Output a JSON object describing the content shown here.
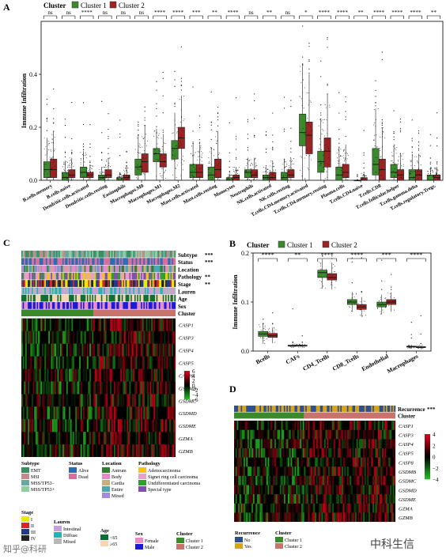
{
  "panel_labels": {
    "a": "A",
    "b": "B",
    "c": "C",
    "d": "D"
  },
  "colors": {
    "cluster1": "#3a8a2c",
    "cluster2": "#9b2324",
    "heat_high": "#e0001b",
    "heat_mid": "#000000",
    "heat_low": "#22bb22"
  },
  "chart_data": [
    {
      "type": "box",
      "panel": "A",
      "legend_title": "Cluster",
      "legend": [
        "Cluster 1",
        "Cluster 2"
      ],
      "ylabel": "Immune Infiltration",
      "ylim": [
        0,
        0.6
      ],
      "yticks": [
        "0.0",
        "0.2",
        "0.4"
      ],
      "categories": [
        "B.cells.memory",
        "B.cells.naive",
        "Dendritic.cells.activated",
        "Dendritic.cells.resting",
        "Eosinophils",
        "Macrophages.M0",
        "Macrophages.M1",
        "Macrophages.M2",
        "Mast.cells.activated",
        "Mast.cells.resting",
        "Monocytes",
        "Neutrophils",
        "NK.cells.activated",
        "NK.cells.resting",
        "T.cells.CD4.memory.activated",
        "T.cells.CD4.memory.resting",
        "Plasma.cells",
        "T.cells.CD4.naive",
        "T.cells.CD8",
        "T.cells.follicular.helper",
        "T.cells.gamma.delta",
        "T.cells.regulatory.Tregs."
      ],
      "significance": [
        "ns",
        "ns",
        "****",
        "ns",
        "ns",
        "ns",
        "****",
        "****",
        "***",
        "**",
        "****",
        "ns",
        "**",
        "ns",
        "*",
        "****",
        "****",
        "**",
        "****",
        "****",
        "****",
        "**"
      ],
      "series": [
        {
          "name": "Cluster 1",
          "q1": [
            0.01,
            0.0,
            0.01,
            0.0,
            0.0,
            0.02,
            0.07,
            0.08,
            0.01,
            0.0,
            0.0,
            0.01,
            0.0,
            0.0,
            0.13,
            0.03,
            0.0,
            0.0,
            0.02,
            0.01,
            0.0,
            0.0
          ],
          "median": [
            0.04,
            0.01,
            0.03,
            0.01,
            0.0,
            0.05,
            0.1,
            0.12,
            0.03,
            0.02,
            0.0,
            0.03,
            0.01,
            0.01,
            0.18,
            0.07,
            0.02,
            0.0,
            0.06,
            0.03,
            0.01,
            0.0
          ],
          "q3": [
            0.07,
            0.03,
            0.05,
            0.02,
            0.01,
            0.08,
            0.12,
            0.15,
            0.06,
            0.05,
            0.01,
            0.04,
            0.02,
            0.03,
            0.25,
            0.11,
            0.05,
            0.0,
            0.12,
            0.06,
            0.04,
            0.02
          ]
        },
        {
          "name": "Cluster 2",
          "q1": [
            0.01,
            0.01,
            0.01,
            0.01,
            0.0,
            0.03,
            0.05,
            0.12,
            0.01,
            0.01,
            0.0,
            0.01,
            0.0,
            0.01,
            0.1,
            0.05,
            0.01,
            0.0,
            0.0,
            0.0,
            0.0,
            0.0
          ],
          "median": [
            0.04,
            0.02,
            0.02,
            0.02,
            0.01,
            0.07,
            0.07,
            0.16,
            0.03,
            0.04,
            0.01,
            0.02,
            0.01,
            0.02,
            0.17,
            0.11,
            0.03,
            0.0,
            0.04,
            0.02,
            0.02,
            0.01
          ],
          "q3": [
            0.08,
            0.04,
            0.03,
            0.04,
            0.02,
            0.1,
            0.1,
            0.2,
            0.06,
            0.08,
            0.02,
            0.04,
            0.03,
            0.04,
            0.22,
            0.16,
            0.06,
            0.01,
            0.08,
            0.04,
            0.04,
            0.02
          ]
        }
      ]
    },
    {
      "type": "box",
      "panel": "B",
      "legend_title": "Cluster",
      "legend": [
        "Cluster 1",
        "Cluster 2"
      ],
      "ylabel": "Immune Infiltration",
      "ylim": [
        0,
        0.2
      ],
      "yticks": [
        "0.0",
        "0.1",
        "0.2"
      ],
      "categories": [
        "Bcells",
        "CAFs",
        "CD4_Tcells",
        "CD8_Tcells",
        "Endothelial",
        "Macrophages"
      ],
      "significance": [
        "****",
        "**",
        "****",
        "****",
        "***",
        "****"
      ],
      "series": [
        {
          "name": "Cluster 1",
          "q1": [
            0.03,
            0.01,
            0.15,
            0.095,
            0.09,
            0.008
          ],
          "median": [
            0.035,
            0.011,
            0.16,
            0.1,
            0.095,
            0.009
          ],
          "q3": [
            0.04,
            0.012,
            0.165,
            0.105,
            0.1,
            0.01
          ]
        },
        {
          "name": "Cluster 2",
          "q1": [
            0.028,
            0.01,
            0.145,
            0.085,
            0.095,
            0.007
          ],
          "median": [
            0.032,
            0.011,
            0.15,
            0.09,
            0.1,
            0.008
          ],
          "q3": [
            0.036,
            0.012,
            0.158,
            0.095,
            0.105,
            0.009
          ]
        }
      ]
    },
    {
      "type": "heatmap",
      "panel": "C",
      "genes": [
        "CASP1",
        "CASP3",
        "CASP4",
        "CASP5",
        "CASP8",
        "GSDMB",
        "GSDMC",
        "GSDMD",
        "GSDME",
        "GZMA",
        "GZMB"
      ],
      "annotation_tracks": [
        "Subtype",
        "Status",
        "Location",
        "Pathology",
        "Stage",
        "Lauren",
        "Age",
        "Sex",
        "Cluster"
      ],
      "track_significance": [
        "***",
        "***",
        "",
        "**",
        "**",
        "",
        "",
        "",
        ""
      ],
      "scale": [
        "6",
        "4",
        "2",
        "0",
        "−2",
        "−4",
        "−6"
      ],
      "legends": [
        {
          "title": "Subtype",
          "items": [
            {
              "label": "EMT",
              "color": "#3b8f5f"
            },
            {
              "label": "MSI",
              "color": "#c38b8b"
            },
            {
              "label": "MSS/TP53−",
              "color": "#67a8a0"
            },
            {
              "label": "MSS/TP53+",
              "color": "#8fcf9f"
            }
          ]
        },
        {
          "title": "Status",
          "items": [
            {
              "label": "Alive",
              "color": "#2a6db5"
            },
            {
              "label": "Dead",
              "color": "#d96d9c"
            }
          ]
        },
        {
          "title": "Location",
          "items": [
            {
              "label": "Antrum",
              "color": "#2f7f2f"
            },
            {
              "label": "Body",
              "color": "#e68bc7"
            },
            {
              "label": "Cardia",
              "color": "#c7ae7b"
            },
            {
              "label": "Entire",
              "color": "#4aa7b0"
            },
            {
              "label": "Mixed",
              "color": "#a889e0"
            }
          ]
        },
        {
          "title": "Pathology",
          "items": [
            {
              "label": "Adenocarcinoma",
              "color": "#f0c419"
            },
            {
              "label": "Signet ring cell carcinoma",
              "color": "#e8a0c8"
            },
            {
              "label": "Undifferentiated carcinoma",
              "color": "#2ca02c"
            },
            {
              "label": "Special type",
              "color": "#7f4fb0"
            }
          ]
        },
        {
          "title": "Stage",
          "items": [
            {
              "label": "I",
              "color": "#f2e500"
            },
            {
              "label": "II",
              "color": "#d62728"
            },
            {
              "label": "III",
              "color": "#1f3a8a"
            },
            {
              "label": "IV",
              "color": "#222222"
            }
          ]
        },
        {
          "title": "Lauren",
          "items": [
            {
              "label": "Intestinal",
              "color": "#c6a0d8"
            },
            {
              "label": "Diffuse",
              "color": "#1fb5b5"
            },
            {
              "label": "Mixed",
              "color": "#b7b7b7"
            }
          ]
        },
        {
          "title": "Age",
          "items": [
            {
              "label": "<65",
              "color": "#0f6e35"
            },
            {
              "label": "≥65",
              "color": "#f6d5b0"
            }
          ]
        },
        {
          "title": "Sex",
          "items": [
            {
              "label": "Female",
              "color": "#e88bc7"
            },
            {
              "label": "Male",
              "color": "#1a1ad8"
            }
          ]
        },
        {
          "title": "Cluster",
          "items": [
            {
              "label": "Cluster 1",
              "color": "#3a8a2c"
            },
            {
              "label": "Cluster 2",
              "color": "#c8736b"
            }
          ]
        }
      ]
    },
    {
      "type": "heatmap",
      "panel": "D",
      "genes": [
        "CASP1",
        "CASP3",
        "CASP4",
        "CASP5",
        "CASP8",
        "GSDMB",
        "GSDMC",
        "GSDMD",
        "GSDME",
        "GZMA",
        "GZMB"
      ],
      "annotation_tracks": [
        "Recurrence",
        "Cluster"
      ],
      "track_significance": [
        "***",
        ""
      ],
      "scale": [
        "4",
        "2",
        "0",
        "−2",
        "−4"
      ],
      "legends": [
        {
          "title": "Recurrence",
          "items": [
            {
              "label": "No",
              "color": "#2c4f8f"
            },
            {
              "label": "Yes",
              "color": "#d9a21b"
            }
          ]
        },
        {
          "title": "Cluster",
          "items": [
            {
              "label": "Cluster 1",
              "color": "#3a8a2c"
            },
            {
              "label": "Cluster 2",
              "color": "#c8736b"
            }
          ]
        }
      ]
    }
  ],
  "watermark": {
    "left": "知乎@科研",
    "right": "中科生信"
  }
}
